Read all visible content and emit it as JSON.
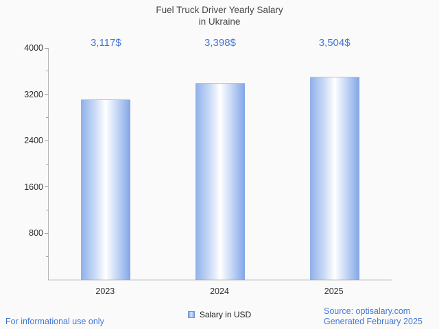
{
  "chart_data": {
    "type": "bar",
    "title": "Fuel Truck Driver Yearly Salary in Ukraine",
    "categories": [
      "2023",
      "2024",
      "2025"
    ],
    "values": [
      3117,
      3398,
      3504
    ],
    "value_labels": [
      "3,117$",
      "3,398$",
      "3,504$"
    ],
    "series": [
      {
        "name": "Salary in USD",
        "values": [
          3117,
          3398,
          3504
        ]
      }
    ],
    "xlabel": "",
    "ylabel": "",
    "ylim": [
      0,
      4000
    ],
    "yticks": [
      800,
      1600,
      2400,
      3200,
      4000
    ],
    "yticks_minor": [
      400,
      1200,
      2000,
      2800,
      3600
    ],
    "grid": false,
    "legend_position": "bottom",
    "legend_entries": [
      "Salary in USD"
    ],
    "bar_edge_color": "#84a7e8",
    "bar_center_color": "#ffffff",
    "annotation_color": "#4377d6"
  },
  "title": {
    "line1": "Fuel Truck Driver Yearly Salary",
    "line2": "in Ukraine"
  },
  "legend": {
    "label": "Salary in USD"
  },
  "footer": {
    "disclaimer": "For informational use only",
    "source": "Source: optisalary.com",
    "generated": "Generated February 2025"
  },
  "colors": {
    "accent_blue": "#4377d6",
    "title_gray": "#474747",
    "axis_text": "#2e2e2e",
    "axis_line": "#9e9e9e",
    "background": "#fafafa"
  }
}
